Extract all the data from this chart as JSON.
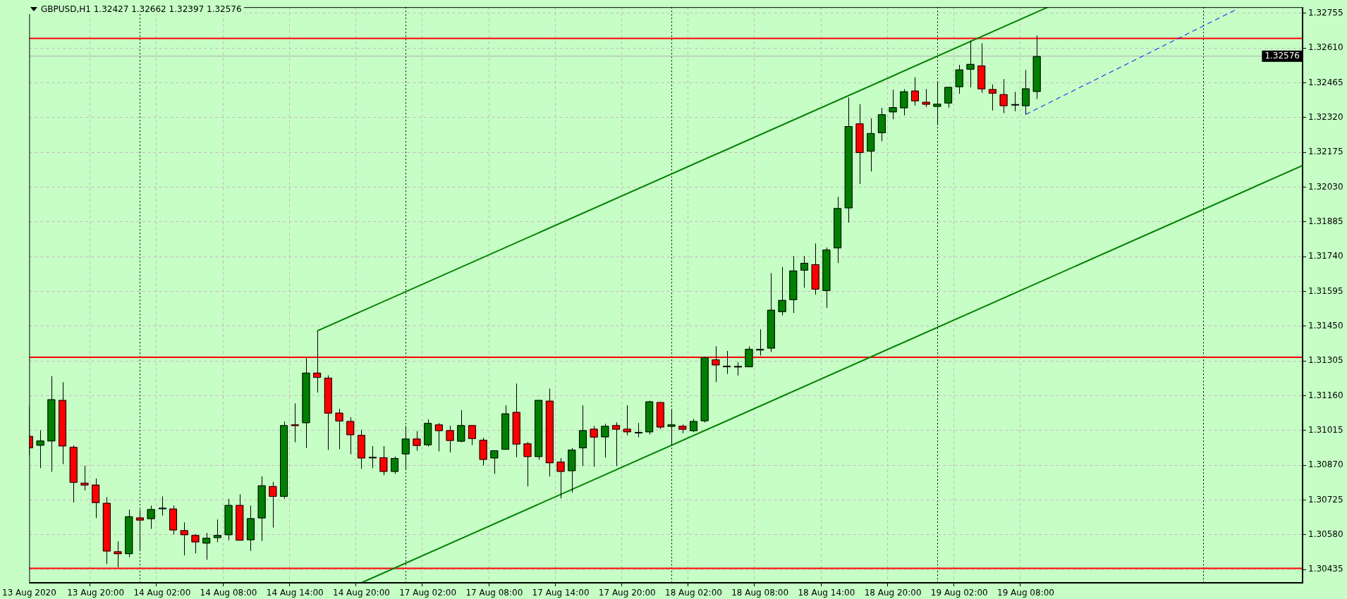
{
  "chart_data": {
    "type": "candlestick",
    "title": "GBPUSD,H1  1.32427 1.32662 1.32397 1.32576",
    "categories": [
      "13 Aug 2020",
      null,
      null,
      null,
      null,
      null,
      "13 Aug 20:00",
      null,
      null,
      null,
      null,
      null,
      "14 Aug 02:00",
      null,
      null,
      null,
      null,
      null,
      "14 Aug 08:00",
      null,
      null,
      null,
      null,
      null,
      "14 Aug 14:00",
      null,
      null,
      null,
      null,
      null,
      "14 Aug 20:00",
      null,
      null,
      null,
      null,
      null,
      "17 Aug 02:00",
      null,
      null,
      null,
      null,
      null,
      "17 Aug 08:00",
      null,
      null,
      null,
      null,
      null,
      "17 Aug 14:00",
      null,
      null,
      null,
      null,
      null,
      "17 Aug 20:00",
      null,
      null,
      null,
      null,
      null,
      "18 Aug 02:00",
      null,
      null,
      null,
      null,
      null,
      "18 Aug 08:00",
      null,
      null,
      null,
      null,
      null,
      "18 Aug 14:00",
      null,
      null,
      null,
      null,
      null,
      "18 Aug 20:00",
      null,
      null,
      null,
      null,
      null,
      "19 Aug 02:00",
      null,
      null,
      null,
      null,
      null,
      "19 Aug 08:00",
      null,
      null,
      null,
      null,
      null,
      null,
      null,
      null,
      null,
      null,
      null,
      null,
      null,
      null,
      null,
      null,
      null,
      null,
      null,
      null,
      null,
      null,
      null,
      null,
      null
    ],
    "ohlc": [
      [
        1.30992,
        1.31114,
        1.30911,
        1.30941
      ],
      [
        1.30952,
        1.31016,
        1.30858,
        1.30973
      ],
      [
        1.3097,
        1.31242,
        1.30843,
        1.31145
      ],
      [
        1.31142,
        1.31216,
        1.30875,
        1.30949
      ],
      [
        1.30946,
        1.30953,
        1.30715,
        1.30797
      ],
      [
        1.30797,
        1.30868,
        1.30765,
        1.30786
      ],
      [
        1.30789,
        1.30815,
        1.3065,
        1.30713
      ],
      [
        1.30713,
        1.30737,
        1.30459,
        1.30511
      ],
      [
        1.30511,
        1.30553,
        1.30445,
        1.305
      ],
      [
        1.305,
        1.30685,
        1.30487,
        1.30657
      ],
      [
        1.30652,
        1.30685,
        1.30517,
        1.3064
      ],
      [
        1.30646,
        1.30702,
        1.30605,
        1.30687
      ],
      [
        1.3069,
        1.3074,
        1.3066,
        1.3069
      ],
      [
        1.30689,
        1.30702,
        1.30581,
        1.30599
      ],
      [
        1.30599,
        1.30632,
        1.30494,
        1.30579
      ],
      [
        1.30579,
        1.30583,
        1.30503,
        1.30549
      ],
      [
        1.30544,
        1.30588,
        1.30476,
        1.30567
      ],
      [
        1.30567,
        1.30644,
        1.30549,
        1.30579
      ],
      [
        1.30579,
        1.3073,
        1.30557,
        1.30704
      ],
      [
        1.30704,
        1.30749,
        1.30556,
        1.30556
      ],
      [
        1.30558,
        1.30702,
        1.30513,
        1.30649
      ],
      [
        1.30649,
        1.30824,
        1.30554,
        1.30786
      ],
      [
        1.30783,
        1.30801,
        1.3061,
        1.30739
      ],
      [
        1.30739,
        1.31052,
        1.30731,
        1.31037
      ],
      [
        1.3104,
        1.31128,
        1.30966,
        1.31034
      ],
      [
        1.31046,
        1.31318,
        1.30942,
        1.31256
      ],
      [
        1.31256,
        1.3143,
        1.31173,
        1.31235
      ],
      [
        1.31235,
        1.31245,
        1.30934,
        1.31086
      ],
      [
        1.31089,
        1.31105,
        1.30937,
        1.31053
      ],
      [
        1.31054,
        1.3107,
        1.30916,
        1.30996
      ],
      [
        1.30996,
        1.31018,
        1.30855,
        1.30899
      ],
      [
        1.30902,
        1.3095,
        1.30858,
        1.30902
      ],
      [
        1.30903,
        1.3095,
        1.30829,
        1.30843
      ],
      [
        1.30843,
        1.30907,
        1.30834,
        1.309
      ],
      [
        1.30916,
        1.31034,
        1.30853,
        1.30981
      ],
      [
        1.30981,
        1.31013,
        1.30931,
        1.30951
      ],
      [
        1.30954,
        1.31062,
        1.30948,
        1.31046
      ],
      [
        1.3104,
        1.31046,
        1.30928,
        1.31013
      ],
      [
        1.31016,
        1.31035,
        1.30924,
        1.30972
      ],
      [
        1.30969,
        1.311,
        1.30966,
        1.31037
      ],
      [
        1.31037,
        1.31037,
        1.30954,
        1.3098
      ],
      [
        1.30976,
        1.30985,
        1.30869,
        1.30893
      ],
      [
        1.30899,
        1.30932,
        1.30834,
        1.30932
      ],
      [
        1.30935,
        1.3112,
        1.30935,
        1.31086
      ],
      [
        1.31092,
        1.31211,
        1.30904,
        1.30957
      ],
      [
        1.30961,
        1.30967,
        1.30782,
        1.30905
      ],
      [
        1.30905,
        1.31142,
        1.30893,
        1.31142
      ],
      [
        1.31139,
        1.3119,
        1.30823,
        1.30879
      ],
      [
        1.30885,
        1.309,
        1.30732,
        1.30843
      ],
      [
        1.30846,
        1.30941,
        1.30756,
        1.30935
      ],
      [
        1.30941,
        1.3112,
        1.30867,
        1.31016
      ],
      [
        1.31022,
        1.31034,
        1.30864,
        1.30986
      ],
      [
        1.30987,
        1.31043,
        1.30902,
        1.31034
      ],
      [
        1.31037,
        1.31049,
        1.30867,
        1.31019
      ],
      [
        1.31022,
        1.3112,
        1.30995,
        1.31008
      ],
      [
        1.31006,
        1.31046,
        1.30987,
        1.31006
      ],
      [
        1.31008,
        1.31139,
        1.30998,
        1.31136
      ],
      [
        1.31133,
        1.31133,
        1.31021,
        1.31028
      ],
      [
        1.31031,
        1.31104,
        1.30953,
        1.3104
      ],
      [
        1.31034,
        1.3104,
        1.31004,
        1.31019
      ],
      [
        1.31013,
        1.31063,
        1.31008,
        1.31054
      ],
      [
        1.31054,
        1.31323,
        1.31048,
        1.3132
      ],
      [
        1.31311,
        1.31366,
        1.31217,
        1.31287
      ],
      [
        1.31285,
        1.31347,
        1.31251,
        1.31279
      ],
      [
        1.31281,
        1.313,
        1.31244,
        1.31281
      ],
      [
        1.31279,
        1.31366,
        1.31279,
        1.31355
      ],
      [
        1.31349,
        1.31437,
        1.31327,
        1.31355
      ],
      [
        1.31357,
        1.31671,
        1.31342,
        1.31518
      ],
      [
        1.31509,
        1.31697,
        1.31495,
        1.31559
      ],
      [
        1.31559,
        1.31743,
        1.31505,
        1.31682
      ],
      [
        1.31682,
        1.31743,
        1.3161,
        1.31714
      ],
      [
        1.31708,
        1.31795,
        1.31581,
        1.31603
      ],
      [
        1.31597,
        1.31778,
        1.31526,
        1.31769
      ],
      [
        1.31775,
        1.31989,
        1.31713,
        1.31942
      ],
      [
        1.31942,
        1.32403,
        1.31882,
        1.32284
      ],
      [
        1.32295,
        1.32376,
        1.32043,
        1.32172
      ],
      [
        1.32178,
        1.32316,
        1.32095,
        1.32255
      ],
      [
        1.32255,
        1.3236,
        1.32221,
        1.32333
      ],
      [
        1.32342,
        1.32436,
        1.32313,
        1.32363
      ],
      [
        1.32359,
        1.32438,
        1.32329,
        1.32429
      ],
      [
        1.32432,
        1.32488,
        1.3237,
        1.32388
      ],
      [
        1.32385,
        1.32439,
        1.32364,
        1.32374
      ],
      [
        1.32365,
        1.32471,
        1.32288,
        1.32377
      ],
      [
        1.32379,
        1.32447,
        1.32361,
        1.32447
      ],
      [
        1.32447,
        1.3254,
        1.32419,
        1.3252
      ],
      [
        1.3252,
        1.32641,
        1.32446,
        1.32543
      ],
      [
        1.32537,
        1.32629,
        1.32423,
        1.32438
      ],
      [
        1.32438,
        1.32458,
        1.32349,
        1.3242
      ],
      [
        1.32417,
        1.3248,
        1.32338,
        1.32368
      ],
      [
        1.32373,
        1.32427,
        1.32346,
        1.32373
      ],
      [
        1.32368,
        1.32518,
        1.32333,
        1.32441
      ],
      [
        1.32427,
        1.32662,
        1.32397,
        1.32576
      ],
      null,
      null,
      null,
      null,
      null,
      null,
      null,
      null,
      null,
      null,
      null,
      null,
      null,
      null,
      null,
      null,
      null,
      null,
      null,
      null,
      null,
      null,
      null,
      null
    ],
    "colors": [
      "#ff0000",
      "#008000",
      "#008000",
      "#ff0000",
      "#ff0000",
      "#ff0000",
      "#ff0000",
      "#ff0000",
      "#ff0000",
      "#008000",
      "#ff0000",
      "#008000",
      "#000000",
      "#ff0000",
      "#ff0000",
      "#ff0000",
      "#008000",
      "#008000",
      "#008000",
      "#ff0000",
      "#008000",
      "#008000",
      "#ff0000",
      "#008000",
      "#ff0000",
      "#008000",
      "#ff0000",
      "#ff0000",
      "#ff0000",
      "#ff0000",
      "#ff0000",
      "#000000",
      "#ff0000",
      "#008000",
      "#008000",
      "#ff0000",
      "#008000",
      "#ff0000",
      "#ff0000",
      "#008000",
      "#ff0000",
      "#ff0000",
      "#008000",
      "#008000",
      "#ff0000",
      "#ff0000",
      "#008000",
      "#ff0000",
      "#ff0000",
      "#008000",
      "#008000",
      "#ff0000",
      "#008000",
      "#ff0000",
      "#ff0000",
      "#000000",
      "#008000",
      "#ff0000",
      "#008000",
      "#ff0000",
      "#008000",
      "#008000",
      "#ff0000",
      "#ff0000",
      "#000000",
      "#008000",
      "#008000",
      "#008000",
      "#008000",
      "#008000",
      "#008000",
      "#ff0000",
      "#008000",
      "#008000",
      "#008000",
      "#ff0000",
      "#008000",
      "#008000",
      "#008000",
      "#008000",
      "#ff0000",
      "#ff0000",
      "#008000",
      "#008000",
      "#008000",
      "#008000",
      "#ff0000",
      "#ff0000",
      "#ff0000",
      "#000000",
      "#008000",
      "#008000",
      null,
      null,
      null,
      null,
      null,
      null,
      null,
      null,
      null,
      null,
      null,
      null,
      null,
      null,
      null,
      null,
      null,
      null,
      null,
      null,
      null,
      null,
      null,
      null
    ],
    "series": [
      {
        "type": "line",
        "color": "#008000",
        "line_style": "solid",
        "values": [
          null,
          null,
          null,
          null,
          null,
          null,
          null,
          null,
          null,
          null,
          null,
          null,
          null,
          null,
          null,
          null,
          null,
          null,
          null,
          null,
          null,
          null,
          null,
          null,
          null,
          null,
          1.3143,
          null,
          null,
          null,
          null,
          null,
          null,
          null,
          null,
          null,
          null,
          null,
          null,
          null,
          null,
          null,
          null,
          null,
          null,
          null,
          null,
          null,
          null,
          null,
          null,
          null,
          null,
          null,
          null,
          null,
          null,
          null,
          null,
          null,
          null,
          null,
          null,
          null,
          null,
          null,
          null,
          null,
          null,
          null,
          null,
          null,
          null,
          null,
          null,
          null,
          null,
          null,
          null,
          null,
          null,
          null,
          null,
          null,
          null,
          null,
          null,
          null,
          null,
          null,
          null,
          null,
          1.3278,
          null,
          null,
          null,
          null,
          null,
          null,
          null,
          null,
          null,
          null,
          null,
          null,
          null,
          null,
          null,
          null,
          null,
          null,
          null,
          null,
          null,
          null,
          null
        ]
      },
      {
        "type": "line",
        "color": "#008000",
        "line_style": "solid",
        "values": [
          null,
          null,
          null,
          null,
          null,
          null,
          null,
          null,
          null,
          null,
          null,
          null,
          null,
          null,
          null,
          null,
          null,
          null,
          null,
          null,
          null,
          null,
          null,
          null,
          null,
          null,
          null,
          null,
          null,
          null,
          1.3038,
          null,
          null,
          null,
          null,
          null,
          null,
          null,
          null,
          null,
          null,
          null,
          null,
          null,
          null,
          null,
          null,
          null,
          null,
          null,
          null,
          null,
          null,
          null,
          null,
          null,
          null,
          null,
          null,
          null,
          null,
          null,
          null,
          null,
          null,
          null,
          null,
          null,
          null,
          null,
          null,
          null,
          null,
          null,
          null,
          null,
          null,
          null,
          null,
          null,
          null,
          null,
          null,
          null,
          null,
          null,
          null,
          null,
          null,
          null,
          null,
          null,
          null,
          null,
          null,
          null,
          null,
          null,
          null,
          null,
          null,
          null,
          null,
          null,
          null,
          null,
          null,
          null,
          null,
          null,
          null,
          null,
          null,
          null,
          null,
          1.3212
        ]
      },
      {
        "type": "line",
        "color": "#0000ff",
        "line_style": "dashed",
        "values": [
          null,
          null,
          null,
          null,
          null,
          null,
          null,
          null,
          null,
          null,
          null,
          null,
          null,
          null,
          null,
          null,
          null,
          null,
          null,
          null,
          null,
          null,
          null,
          null,
          null,
          null,
          null,
          null,
          null,
          null,
          null,
          null,
          null,
          null,
          null,
          null,
          null,
          null,
          null,
          null,
          null,
          null,
          null,
          null,
          null,
          null,
          null,
          null,
          null,
          null,
          null,
          null,
          null,
          null,
          null,
          null,
          null,
          null,
          null,
          null,
          null,
          null,
          null,
          null,
          null,
          null,
          null,
          null,
          null,
          null,
          null,
          null,
          null,
          null,
          null,
          null,
          null,
          null,
          null,
          null,
          null,
          null,
          null,
          null,
          null,
          null,
          null,
          null,
          null,
          null,
          1.32333,
          null,
          null,
          null,
          null,
          null,
          null,
          null,
          null,
          null,
          null,
          null,
          null,
          null,
          null,
          null,
          null,
          null,
          null,
          1.3277,
          null,
          null,
          null,
          null,
          null,
          null
        ]
      }
    ],
    "ylim": [
      1.3038,
      1.3278
    ],
    "yticks": [
      1.30435,
      {
        "value": 1.3058,
        "label": "1.30580"
      },
      1.30725,
      {
        "value": 1.3087,
        "label": "1.30870"
      },
      1.31015,
      {
        "value": 1.3116,
        "label": "1.31160"
      },
      1.31305,
      {
        "value": 1.3145,
        "label": "1.31450"
      },
      1.31595,
      {
        "value": 1.3174,
        "label": "1.31740"
      },
      1.31885,
      {
        "value": 1.3203,
        "label": "1.32030"
      },
      1.32175,
      {
        "value": 1.3232,
        "label": "1.32320"
      },
      1.32465,
      {
        "value": 1.3261,
        "label": "1.32610"
      },
      1.32755
    ],
    "ref_lines": [
      {
        "axis": "y",
        "value": 1.3265,
        "color": "#ff0000",
        "line_style": "solid"
      },
      {
        "axis": "y",
        "value": 1.3132,
        "color": "#ff0000",
        "line_style": "solid"
      },
      {
        "axis": "y",
        "value": 1.3044,
        "color": "#ff0000",
        "line_style": "solid"
      },
      {
        "axis": "y",
        "value": 1.32576,
        "label": "1.32576",
        "color": "#b0b0b0",
        "line_style": "solid"
      }
    ],
    "grid": true
  }
}
